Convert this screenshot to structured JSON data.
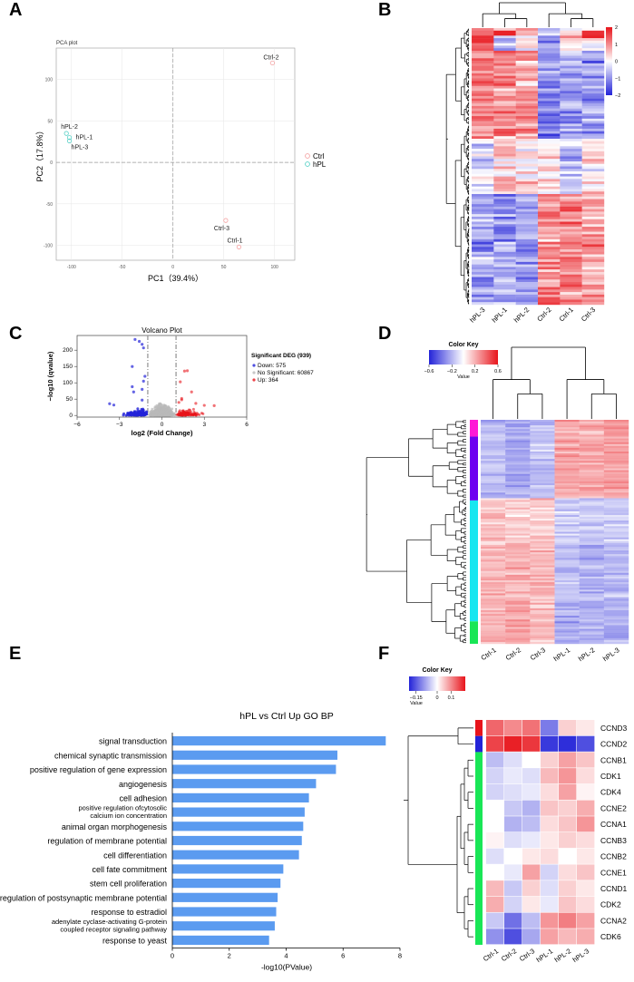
{
  "panel_letters": [
    "A",
    "B",
    "C",
    "D",
    "E",
    "F"
  ],
  "colors": {
    "ctrl": "#f4a3a3",
    "hpl": "#59d1c7",
    "blue": "#2323d8",
    "red": "#e8141b",
    "grey": "#b9b9b9",
    "bar": "#5b9bf0",
    "magenta": "#ff18d6",
    "purple": "#6e00f0",
    "cyan": "#16e6f0",
    "green": "#19e656"
  },
  "chart_data": [
    {
      "id": "A",
      "type": "scatter",
      "title": "PCA plot",
      "xlabel": "PC1（39.4%）",
      "ylabel": "PC2（17.8%）",
      "xlim": [
        -115,
        120
      ],
      "ylim": [
        -118,
        138
      ],
      "xticks": [
        -100,
        -50,
        0,
        50,
        100
      ],
      "yticks": [
        -100,
        -50,
        0,
        50,
        100
      ],
      "legend": [
        "Ctrl",
        "hPL"
      ],
      "points": [
        {
          "label": "Ctrl-2",
          "group": "Ctrl",
          "x": 98,
          "y": 120
        },
        {
          "label": "hPL-2",
          "group": "hPL",
          "x": -105,
          "y": 35
        },
        {
          "label": "hPL-1",
          "group": "hPL",
          "x": -102,
          "y": 30
        },
        {
          "label": "hPL-3",
          "group": "hPL",
          "x": -102,
          "y": 26
        },
        {
          "label": "Ctrl-3",
          "group": "Ctrl",
          "x": 52,
          "y": -70
        },
        {
          "label": "Ctrl-1",
          "group": "Ctrl",
          "x": 65,
          "y": -102
        }
      ]
    },
    {
      "id": "B",
      "type": "heatmap",
      "columns": [
        "hPL-3",
        "hPL-1",
        "hPL-2",
        "Ctrl-2",
        "Ctrl-1",
        "Ctrl-3"
      ],
      "color_scale": {
        "ticks": [
          2,
          1,
          0,
          -1,
          -2
        ],
        "min": -2,
        "max": 2
      }
    },
    {
      "id": "C",
      "type": "scatter",
      "title": "Volcano Plot",
      "xlabel": "log2 (Fold Change)",
      "ylabel": "−log10 (qvalue)",
      "xlim": [
        -6,
        6
      ],
      "ylim": [
        -5,
        245
      ],
      "xticks": [
        -6,
        -3,
        0,
        3,
        6
      ],
      "yticks": [
        0,
        50,
        100,
        150,
        200
      ],
      "legend_title": "Significant DEG (939)",
      "legend": [
        "Down: 575",
        "No Significant: 60867",
        "Up: 364"
      ],
      "counts": {
        "down": 575,
        "ns": 60867,
        "up": 364,
        "total_deg": 939
      },
      "highlight_points": {
        "down": [
          [
            -1.9,
            233
          ],
          [
            -1.6,
            227
          ],
          [
            -1.4,
            218
          ],
          [
            -1.3,
            207
          ],
          [
            -2.1,
            150
          ],
          [
            -1.2,
            120
          ],
          [
            -1.3,
            105
          ],
          [
            -2.1,
            88
          ],
          [
            -1.4,
            80
          ],
          [
            -2.0,
            72
          ],
          [
            -3.7,
            36
          ],
          [
            -3.4,
            32
          ],
          [
            -1.4,
            47
          ]
        ],
        "up": [
          [
            1.3,
            103
          ],
          [
            1.8,
            137
          ],
          [
            1.6,
            136
          ],
          [
            2.1,
            72
          ],
          [
            1.4,
            52
          ],
          [
            1.4,
            48
          ],
          [
            2.4,
            37
          ],
          [
            3.0,
            31
          ],
          [
            3.7,
            30
          ],
          [
            1.2,
            40
          ]
        ]
      }
    },
    {
      "id": "D",
      "type": "heatmap",
      "columns": [
        "Ctrl-1",
        "Ctrl-2",
        "Ctrl-3",
        "hPL-1",
        "hPL-2",
        "hPL-3"
      ],
      "color_key_title": "Color Key",
      "color_key_label": "Value",
      "color_scale": {
        "ticks": [
          "-0.6",
          "-0.2",
          "0.2",
          "0.6"
        ],
        "min": -0.6,
        "max": 0.6
      },
      "row_clusters": [
        "magenta",
        "purple",
        "cyan",
        "green"
      ]
    },
    {
      "id": "E",
      "type": "bar",
      "orientation": "horizontal",
      "title": "hPL vs Ctrl Up GO BP",
      "xlabel": "-log10(PValue)",
      "xlim": [
        0,
        8
      ],
      "xticks": [
        0,
        2,
        4,
        6,
        8
      ],
      "categories": [
        [
          "signal transduction"
        ],
        [
          "chemical synaptic transmission"
        ],
        [
          "positive regulation of gene expression"
        ],
        [
          "angiogenesis"
        ],
        [
          "cell adhesion"
        ],
        [
          "positive regulation ofcytosolic",
          "calcium ion concentration"
        ],
        [
          "animal organ morphogenesis"
        ],
        [
          "regulation of membrane potential"
        ],
        [
          "cell differentiation"
        ],
        [
          "cell fate commitment"
        ],
        [
          "stem cell proliferation"
        ],
        [
          "regulation of postsynaptic membrane potential"
        ],
        [
          "response to estradiol"
        ],
        [
          "adenylate cyclase-activating G-protein",
          "coupled receptor signaling pathway"
        ],
        [
          "response to yeast"
        ]
      ],
      "values": [
        7.5,
        5.8,
        5.75,
        5.05,
        4.8,
        4.65,
        4.6,
        4.55,
        4.45,
        3.9,
        3.8,
        3.7,
        3.65,
        3.6,
        3.4
      ]
    },
    {
      "id": "F",
      "type": "heatmap",
      "columns": [
        "Ctrl-1",
        "Ctrl-2",
        "Ctrl-3",
        "hPL-1",
        "hPL-2",
        "hPL-3"
      ],
      "rows": [
        "CCND3",
        "CCND2",
        "CCNB1",
        "CDK1",
        "CDK4",
        "CCNE2",
        "CCNA1",
        "CCNB3",
        "CCNB2",
        "CCNE1",
        "CCND1",
        "CDK2",
        "CCNA2",
        "CDK6"
      ],
      "color_key_title": "Color Key",
      "color_key_label": "Value",
      "color_scale": {
        "ticks": [
          "-0.15",
          "0",
          "0.1"
        ],
        "min": -0.2,
        "max": 0.2
      },
      "values": [
        [
          0.13,
          0.1,
          0.12,
          -0.12,
          0.04,
          0.02
        ],
        [
          0.16,
          0.19,
          0.17,
          -0.18,
          -0.19,
          -0.16
        ],
        [
          -0.06,
          -0.03,
          0.0,
          0.04,
          0.08,
          0.05
        ],
        [
          -0.04,
          -0.02,
          -0.03,
          0.06,
          0.09,
          0.03
        ],
        [
          -0.04,
          -0.03,
          -0.02,
          0.03,
          0.08,
          0.01
        ],
        [
          0.0,
          -0.05,
          -0.07,
          0.05,
          0.04,
          0.07
        ],
        [
          0.0,
          -0.07,
          -0.06,
          0.03,
          0.05,
          0.09
        ],
        [
          0.01,
          -0.03,
          -0.02,
          0.02,
          0.04,
          0.03
        ],
        [
          -0.03,
          0.0,
          0.02,
          0.03,
          0.0,
          0.02
        ],
        [
          0.0,
          -0.02,
          0.08,
          -0.04,
          0.03,
          0.05
        ],
        [
          0.06,
          -0.05,
          0.04,
          -0.03,
          0.04,
          0.02
        ],
        [
          0.07,
          -0.04,
          0.02,
          -0.02,
          0.05,
          0.03
        ],
        [
          -0.05,
          -0.13,
          -0.06,
          0.09,
          0.11,
          0.08
        ],
        [
          -0.1,
          -0.16,
          -0.08,
          0.08,
          0.06,
          0.07
        ]
      ]
    }
  ]
}
